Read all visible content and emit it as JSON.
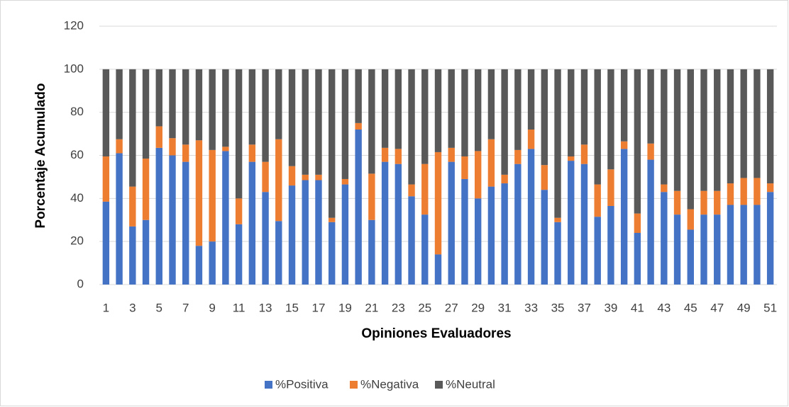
{
  "chart_data": {
    "type": "stacked_bar",
    "xlabel": "Opiniones Evaluadores",
    "ylabel": "Porcentaje Acumulado",
    "categories": [
      "1",
      null,
      "3",
      null,
      "5",
      null,
      "7",
      null,
      "9",
      null,
      "11",
      null,
      "13",
      null,
      "15",
      null,
      "17",
      null,
      "19",
      null,
      "21",
      null,
      "23",
      null,
      "25",
      null,
      "27",
      null,
      "29",
      null,
      "31",
      null,
      "33",
      null,
      "35",
      null,
      "37",
      null,
      "39",
      null,
      "41",
      null,
      "43",
      null,
      "45",
      null,
      "47",
      null,
      "49",
      null,
      "51"
    ],
    "series": [
      {
        "name": "%Positiva",
        "color": "#4472c4",
        "values": [
          38.5,
          61,
          27,
          30,
          63.5,
          60,
          57,
          18,
          20,
          62,
          28,
          57,
          43,
          29.5,
          46,
          48.5,
          48.5,
          29,
          46.5,
          72,
          30,
          57,
          56,
          41,
          32.5,
          14,
          57,
          49,
          40,
          45.5,
          47,
          56,
          63,
          44,
          29,
          57.5,
          56,
          31.5,
          36.5,
          63,
          24,
          58,
          43,
          32.5,
          25.5,
          32.5,
          32.5,
          37,
          37,
          37,
          43
        ]
      },
      {
        "name": "%Negativa",
        "color": "#ed7d31",
        "values": [
          21,
          6.5,
          18.5,
          28.5,
          10,
          8,
          8,
          49,
          42.5,
          2,
          12,
          8,
          14,
          38,
          9,
          2.5,
          2.5,
          2,
          2.5,
          3,
          21.5,
          6.5,
          7,
          5.5,
          23.5,
          47.5,
          6.5,
          10.5,
          22,
          22,
          4,
          6.5,
          9,
          11.5,
          2,
          2,
          9,
          15,
          17,
          3.5,
          9,
          7.5,
          3.5,
          11,
          9.5,
          11,
          11,
          10,
          12.5,
          12.5,
          4
        ]
      },
      {
        "name": "%Neutral",
        "color": "#595959",
        "values": [
          40.5,
          32.5,
          54.5,
          41.5,
          26.5,
          32,
          35,
          33,
          37.5,
          36,
          60,
          35,
          43,
          32.5,
          45,
          49,
          49,
          69,
          51,
          25,
          48.5,
          36.5,
          37,
          53.5,
          44,
          38.5,
          36.5,
          40.5,
          38,
          32.5,
          49,
          37.5,
          28,
          44.5,
          69,
          40.5,
          35,
          53.5,
          46.5,
          33.5,
          67,
          34.5,
          53.5,
          56.5,
          65,
          56.5,
          56.5,
          53,
          50.5,
          50.5,
          53
        ]
      }
    ],
    "ylim": [
      0,
      120
    ],
    "yticks": [
      0,
      20,
      40,
      60,
      80,
      100,
      120
    ],
    "grid": true,
    "legend": "bottom"
  }
}
